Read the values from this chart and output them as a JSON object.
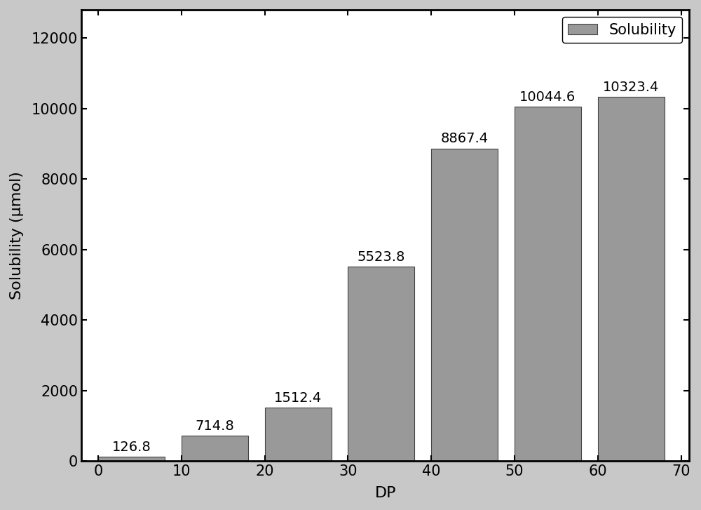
{
  "categories": [
    0,
    10,
    20,
    30,
    40,
    50,
    60
  ],
  "values": [
    126.8,
    714.8,
    1512.4,
    5523.8,
    8867.4,
    10044.6,
    10323.4
  ],
  "bar_color": "#999999",
  "bar_edgecolor": "#444444",
  "bar_width": 8.0,
  "bar_align": "edge",
  "xlabel": "DP",
  "ylabel": "Solubility (μmol)",
  "xlim": [
    -2,
    71
  ],
  "ylim": [
    0,
    12800
  ],
  "yticks": [
    0,
    2000,
    4000,
    6000,
    8000,
    10000,
    12000
  ],
  "xticks": [
    0,
    10,
    20,
    30,
    40,
    50,
    60,
    70
  ],
  "legend_label": "Solubility",
  "legend_loc": "upper right",
  "label_fontsize": 16,
  "tick_fontsize": 15,
  "annot_fontsize": 14,
  "plot_bgcolor": "#ffffff",
  "figure_facecolor": "#c8c8c8"
}
